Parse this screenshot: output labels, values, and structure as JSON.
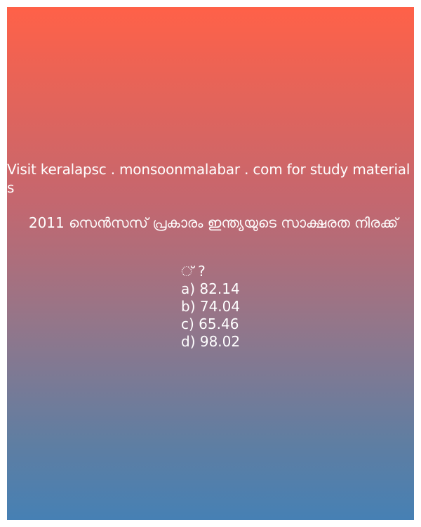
{
  "site_text": "Visit keralapsc . monsoonmalabar . com for study materials",
  "question": "2011 സെൻസസ് പ്രകാരം ഇന്ത്യയുടെ സാക്ഷരത നിരക്ക്",
  "question_end": "്‌ ?",
  "options": [
    "a) 82.14",
    "b) 74.04",
    "c) 65.46",
    "d) 98.02"
  ],
  "colors": {
    "gradient_top": "#ff6148",
    "gradient_bottom": "#4680b4",
    "text": "#ffffff"
  }
}
